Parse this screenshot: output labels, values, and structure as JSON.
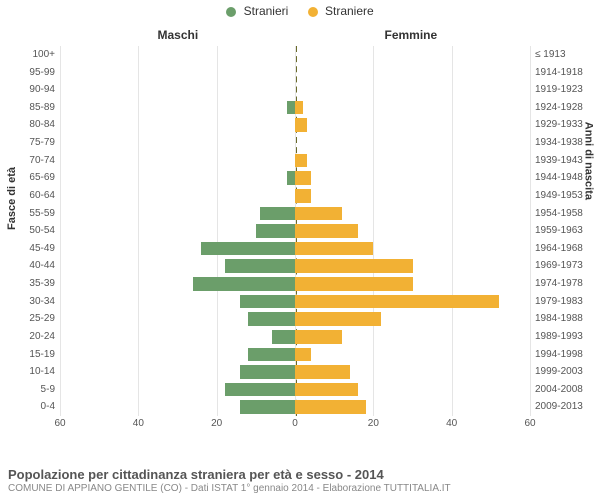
{
  "chart": {
    "type": "population-pyramid",
    "legend": {
      "male": "Stranieri",
      "female": "Straniere"
    },
    "section_titles": {
      "left": "Maschi",
      "right": "Femmine"
    },
    "y_left_axis_label": "Fasce di età",
    "y_right_axis_label": "Anni di nascita",
    "colors": {
      "male": "#6b9e6a",
      "female": "#f2b134",
      "grid": "#e5e5e5",
      "center_line": "#6a6a2a",
      "background": "#ffffff"
    },
    "x_axis": {
      "max": 60,
      "ticks": [
        60,
        40,
        20,
        0,
        20,
        40,
        60
      ]
    },
    "age_groups": [
      "0-4",
      "5-9",
      "10-14",
      "15-19",
      "20-24",
      "25-29",
      "30-34",
      "35-39",
      "40-44",
      "45-49",
      "50-54",
      "55-59",
      "60-64",
      "65-69",
      "70-74",
      "75-79",
      "80-84",
      "85-89",
      "90-94",
      "95-99",
      "100+"
    ],
    "birth_years": [
      "2009-2013",
      "2004-2008",
      "1999-2003",
      "1994-1998",
      "1989-1993",
      "1984-1988",
      "1979-1983",
      "1974-1978",
      "1969-1973",
      "1964-1968",
      "1959-1963",
      "1954-1958",
      "1949-1953",
      "1944-1948",
      "1939-1943",
      "1934-1938",
      "1929-1933",
      "1924-1928",
      "1919-1923",
      "1914-1918",
      "≤ 1913"
    ],
    "male_values": [
      14,
      18,
      14,
      12,
      6,
      12,
      14,
      26,
      18,
      24,
      10,
      9,
      0,
      2,
      0,
      0,
      0,
      2,
      0,
      0,
      0
    ],
    "female_values": [
      18,
      16,
      14,
      4,
      12,
      22,
      52,
      30,
      30,
      20,
      16,
      12,
      4,
      4,
      3,
      0,
      3,
      2,
      0,
      0,
      0
    ],
    "title": "Popolazione per cittadinanza straniera per età e sesso - 2014",
    "subtitle": "COMUNE DI APPIANO GENTILE (CO) - Dati ISTAT 1° gennaio 2014 - Elaborazione TUTTITALIA.IT",
    "fontsize": {
      "legend": 12,
      "section_title": 12,
      "axis_label": 11,
      "tick": 10,
      "title": 13,
      "subtitle": 10
    }
  }
}
